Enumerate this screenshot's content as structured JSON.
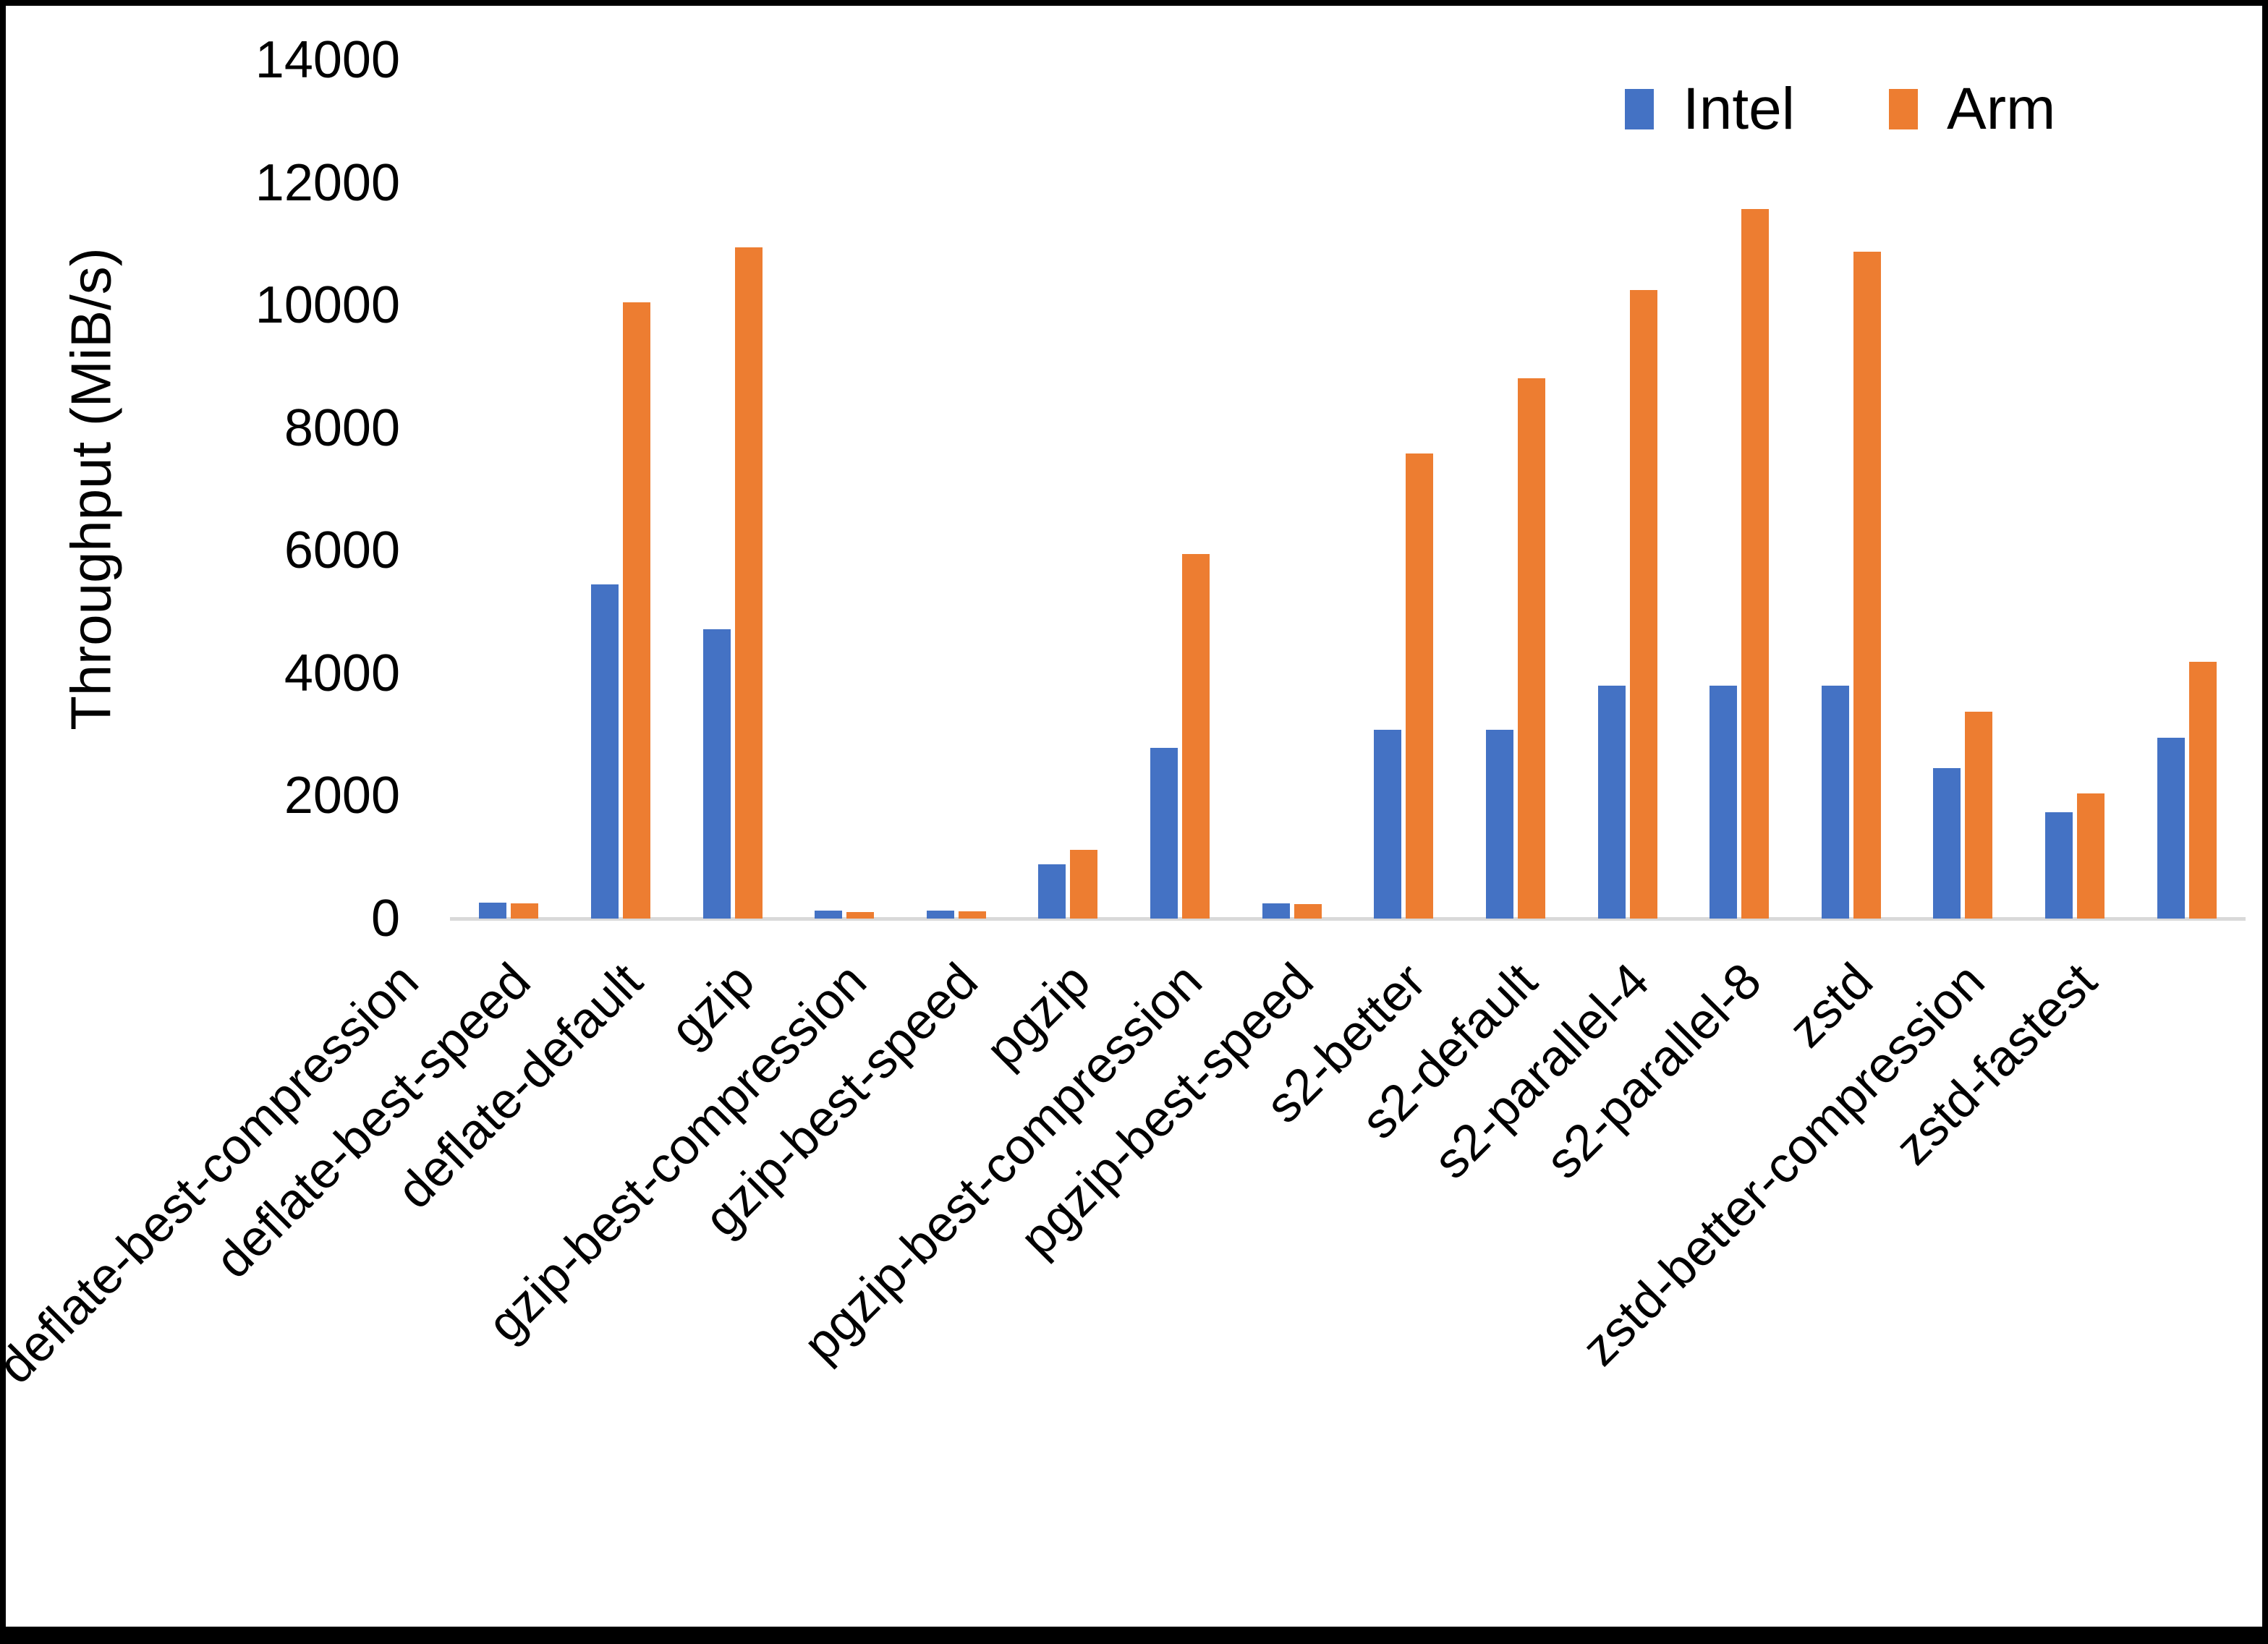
{
  "page": {
    "background": "#FFFFFF",
    "border_color": "#000000"
  },
  "colors": {
    "intel": "#4472C4",
    "arm": "#ED7D31",
    "axis_line": "#D9D9D9",
    "text": "#000000"
  },
  "legend": {
    "position": "top-right",
    "items": [
      {
        "label": "Intel",
        "color": "#4472C4"
      },
      {
        "label": "Arm",
        "color": "#ED7D31"
      }
    ]
  },
  "chart_data": {
    "type": "bar",
    "title": "",
    "xlabel": "",
    "ylabel": "Throughput (MiB/s)",
    "ylim": [
      0,
      14000
    ],
    "yticks": [
      0,
      2000,
      4000,
      6000,
      8000,
      10000,
      12000,
      14000
    ],
    "grid": false,
    "legend_position": "top-right",
    "categories": [
      "deflate-best-compression",
      "deflate-best-speed",
      "deflate-default",
      "gzip",
      "gzip-best-compression",
      "gzip-best-speed",
      "pgzip",
      "pgzip-best-compression",
      "pgzip-best-speed",
      "s2-better",
      "s2-default",
      "s2-parallel-4",
      "s2-parallel-8",
      "zstd",
      "zstd-better-compression",
      "zstd-fastest"
    ],
    "series": [
      {
        "name": "Intel",
        "color": "#4472C4",
        "values": [
          255,
          5450,
          4720,
          130,
          125,
          890,
          2780,
          250,
          3080,
          3080,
          3800,
          3800,
          3800,
          2455,
          1735,
          2950
        ]
      },
      {
        "name": "Arm",
        "color": "#ED7D31",
        "values": [
          245,
          10050,
          10950,
          105,
          115,
          1115,
          5950,
          235,
          7580,
          8810,
          10250,
          11570,
          10870,
          3375,
          2040,
          4190
        ]
      }
    ]
  }
}
